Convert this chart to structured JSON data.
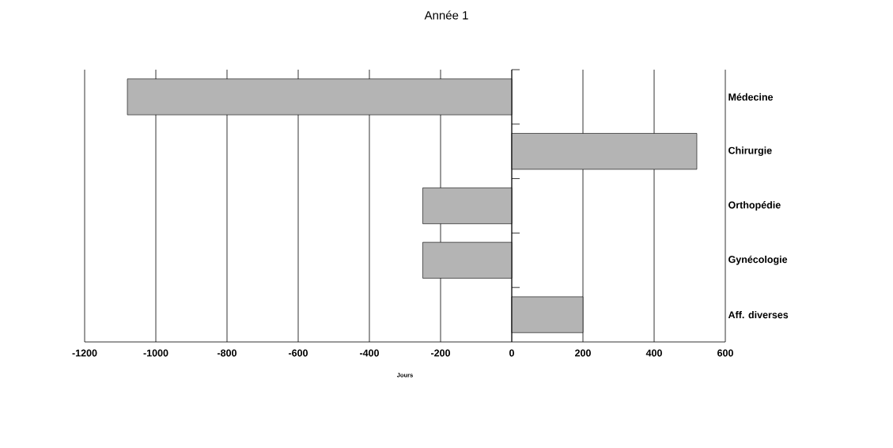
{
  "chart_data": {
    "type": "bar",
    "orientation": "horizontal",
    "title": "Année 1",
    "xlabel": "Jours",
    "categories": [
      "Médecine",
      "Chirurgie",
      "Orthopédie",
      "Gynécologie",
      "Aff. diverses"
    ],
    "values": [
      -1080,
      520,
      -250,
      -250,
      200
    ],
    "color": "#b4b4b4",
    "xlim": [
      -1200,
      600
    ],
    "xticks": [
      -1200,
      -1000,
      -800,
      -600,
      -400,
      -200,
      0,
      200,
      400,
      600
    ],
    "grid": "x"
  }
}
